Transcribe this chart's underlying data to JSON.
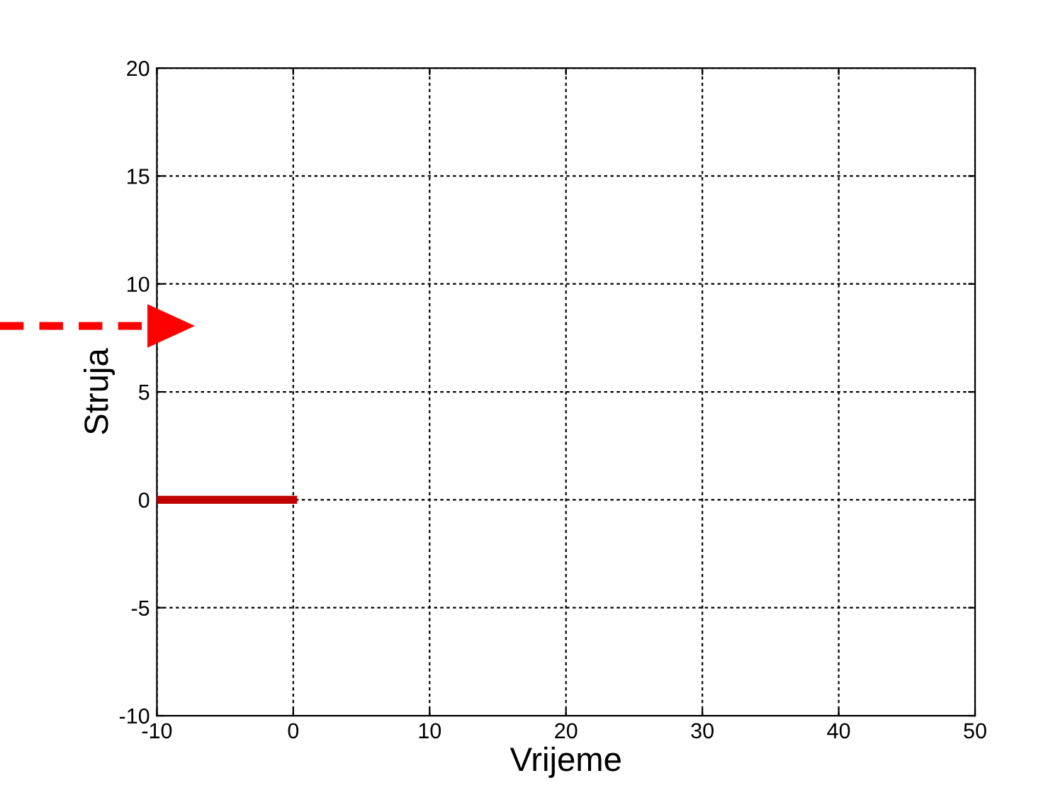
{
  "chart_data": {
    "type": "line",
    "xlabel": "Vrijeme",
    "ylabel": "Struja",
    "x": [
      -10,
      0
    ],
    "series": [
      {
        "color": "#c00000",
        "values": [
          0,
          0
        ]
      }
    ],
    "xlim": [
      -10,
      50
    ],
    "xticks": [
      -10,
      0,
      10,
      20,
      30,
      40,
      50
    ],
    "ylim": [
      -10,
      20
    ],
    "yticks": [
      -10,
      -5,
      0,
      5,
      10,
      15,
      20
    ],
    "grid": true,
    "line_style": "solid",
    "marker": "none"
  }
}
